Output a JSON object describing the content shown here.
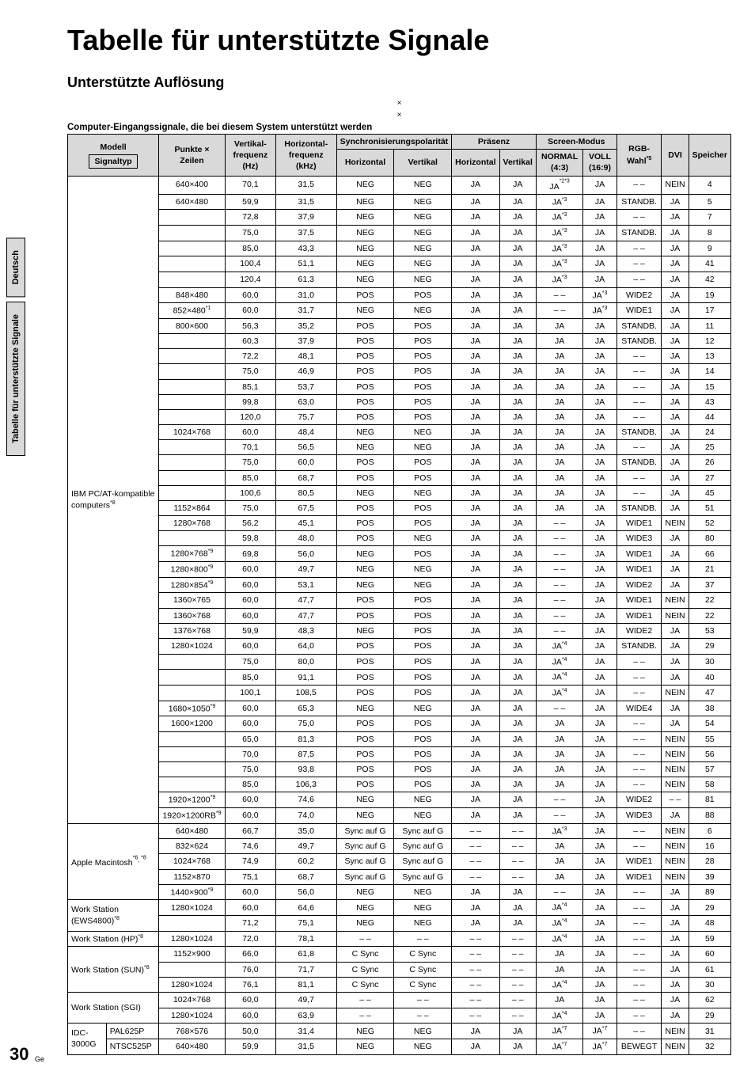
{
  "sideTabs": [
    "Deutsch",
    "Tabelle für unterstützte Signale"
  ],
  "title": "Tabelle für unterstützte Signale",
  "subtitle": "Unterstützte Auflösung",
  "metaLines": [
    "×",
    "×"
  ],
  "caption": "Computer-Eingangssignale, die bei diesem System unterstützt werden",
  "pageNumber": "30",
  "locale": "Ge",
  "headers": {
    "modell": "Modell",
    "signaltyp": "Signaltyp",
    "punkte": "Punkte × Zeilen",
    "vfreq": "Vertikal-frequenz (Hz)",
    "hfreq": "Horizontal-frequenz (kHz)",
    "syncpol": "Synchronisierungspolarität",
    "sync_h": "Horizontal",
    "sync_v": "Vertikal",
    "presenz": "Präsenz",
    "pres_h": "Horizontal",
    "pres_v": "Vertikal",
    "screen": "Screen-Modus",
    "normal": "NORMAL (4:3)",
    "voll": "VOLL (16:9)",
    "rgb": "RGB-Wahl*5",
    "dvi": "DVI",
    "speicher": "Speicher"
  },
  "groups": [
    {
      "model": "IBM PC/AT-kompatible computers*8",
      "rows": [
        {
          "pz": "640×400",
          "v": "70,1",
          "h": "31,5",
          "sh": "NEG",
          "sv": "NEG",
          "ph": "JA",
          "pv": "JA",
          "n": "JA*2*3",
          "f": "JA",
          "r": "– –",
          "d": "NEIN",
          "s": "4"
        },
        {
          "pz": "640×480",
          "v": "59,9",
          "h": "31,5",
          "sh": "NEG",
          "sv": "NEG",
          "ph": "JA",
          "pv": "JA",
          "n": "JA*3",
          "f": "JA",
          "r": "STANDB.",
          "d": "JA",
          "s": "5"
        },
        {
          "v": "72,8",
          "h": "37,9",
          "sh": "NEG",
          "sv": "NEG",
          "ph": "JA",
          "pv": "JA",
          "n": "JA*3",
          "f": "JA",
          "r": "– –",
          "d": "JA",
          "s": "7"
        },
        {
          "v": "75,0",
          "h": "37,5",
          "sh": "NEG",
          "sv": "NEG",
          "ph": "JA",
          "pv": "JA",
          "n": "JA*3",
          "f": "JA",
          "r": "STANDB.",
          "d": "JA",
          "s": "8"
        },
        {
          "v": "85,0",
          "h": "43,3",
          "sh": "NEG",
          "sv": "NEG",
          "ph": "JA",
          "pv": "JA",
          "n": "JA*3",
          "f": "JA",
          "r": "– –",
          "d": "JA",
          "s": "9"
        },
        {
          "v": "100,4",
          "h": "51,1",
          "sh": "NEG",
          "sv": "NEG",
          "ph": "JA",
          "pv": "JA",
          "n": "JA*3",
          "f": "JA",
          "r": "– –",
          "d": "JA",
          "s": "41"
        },
        {
          "v": "120,4",
          "h": "61,3",
          "sh": "NEG",
          "sv": "NEG",
          "ph": "JA",
          "pv": "JA",
          "n": "JA*3",
          "f": "JA",
          "r": "– –",
          "d": "JA",
          "s": "42"
        },
        {
          "pz": "848×480",
          "v": "60,0",
          "h": "31,0",
          "sh": "POS",
          "sv": "POS",
          "ph": "JA",
          "pv": "JA",
          "n": "– –",
          "f": "JA*3",
          "r": "WIDE2",
          "d": "JA",
          "s": "19"
        },
        {
          "pz": "852×480*1",
          "v": "60,0",
          "h": "31,7",
          "sh": "NEG",
          "sv": "NEG",
          "ph": "JA",
          "pv": "JA",
          "n": "– –",
          "f": "JA*3",
          "r": "WIDE1",
          "d": "JA",
          "s": "17"
        },
        {
          "pz": "800×600",
          "v": "56,3",
          "h": "35,2",
          "sh": "POS",
          "sv": "POS",
          "ph": "JA",
          "pv": "JA",
          "n": "JA",
          "f": "JA",
          "r": "STANDB.",
          "d": "JA",
          "s": "11"
        },
        {
          "v": "60,3",
          "h": "37,9",
          "sh": "POS",
          "sv": "POS",
          "ph": "JA",
          "pv": "JA",
          "n": "JA",
          "f": "JA",
          "r": "STANDB.",
          "d": "JA",
          "s": "12"
        },
        {
          "v": "72,2",
          "h": "48,1",
          "sh": "POS",
          "sv": "POS",
          "ph": "JA",
          "pv": "JA",
          "n": "JA",
          "f": "JA",
          "r": "– –",
          "d": "JA",
          "s": "13"
        },
        {
          "v": "75,0",
          "h": "46,9",
          "sh": "POS",
          "sv": "POS",
          "ph": "JA",
          "pv": "JA",
          "n": "JA",
          "f": "JA",
          "r": "– –",
          "d": "JA",
          "s": "14"
        },
        {
          "v": "85,1",
          "h": "53,7",
          "sh": "POS",
          "sv": "POS",
          "ph": "JA",
          "pv": "JA",
          "n": "JA",
          "f": "JA",
          "r": "– –",
          "d": "JA",
          "s": "15"
        },
        {
          "v": "99,8",
          "h": "63,0",
          "sh": "POS",
          "sv": "POS",
          "ph": "JA",
          "pv": "JA",
          "n": "JA",
          "f": "JA",
          "r": "– –",
          "d": "JA",
          "s": "43"
        },
        {
          "v": "120,0",
          "h": "75,7",
          "sh": "POS",
          "sv": "POS",
          "ph": "JA",
          "pv": "JA",
          "n": "JA",
          "f": "JA",
          "r": "– –",
          "d": "JA",
          "s": "44"
        },
        {
          "pz": "1024×768",
          "v": "60,0",
          "h": "48,4",
          "sh": "NEG",
          "sv": "NEG",
          "ph": "JA",
          "pv": "JA",
          "n": "JA",
          "f": "JA",
          "r": "STANDB.",
          "d": "JA",
          "s": "24"
        },
        {
          "v": "70,1",
          "h": "56,5",
          "sh": "NEG",
          "sv": "NEG",
          "ph": "JA",
          "pv": "JA",
          "n": "JA",
          "f": "JA",
          "r": "– –",
          "d": "JA",
          "s": "25"
        },
        {
          "v": "75,0",
          "h": "60,0",
          "sh": "POS",
          "sv": "POS",
          "ph": "JA",
          "pv": "JA",
          "n": "JA",
          "f": "JA",
          "r": "STANDB.",
          "d": "JA",
          "s": "26"
        },
        {
          "v": "85,0",
          "h": "68,7",
          "sh": "POS",
          "sv": "POS",
          "ph": "JA",
          "pv": "JA",
          "n": "JA",
          "f": "JA",
          "r": "– –",
          "d": "JA",
          "s": "27"
        },
        {
          "v": "100,6",
          "h": "80,5",
          "sh": "NEG",
          "sv": "NEG",
          "ph": "JA",
          "pv": "JA",
          "n": "JA",
          "f": "JA",
          "r": "– –",
          "d": "JA",
          "s": "45"
        },
        {
          "pz": "1152×864",
          "v": "75,0",
          "h": "67,5",
          "sh": "POS",
          "sv": "POS",
          "ph": "JA",
          "pv": "JA",
          "n": "JA",
          "f": "JA",
          "r": "STANDB.",
          "d": "JA",
          "s": "51"
        },
        {
          "pz": "1280×768",
          "v": "56,2",
          "h": "45,1",
          "sh": "POS",
          "sv": "POS",
          "ph": "JA",
          "pv": "JA",
          "n": "– –",
          "f": "JA",
          "r": "WIDE1",
          "d": "NEIN",
          "s": "52"
        },
        {
          "v": "59,8",
          "h": "48,0",
          "sh": "POS",
          "sv": "NEG",
          "ph": "JA",
          "pv": "JA",
          "n": "– –",
          "f": "JA",
          "r": "WIDE3",
          "d": "JA",
          "s": "80"
        },
        {
          "pz": "1280×768*9",
          "v": "69,8",
          "h": "56,0",
          "sh": "NEG",
          "sv": "POS",
          "ph": "JA",
          "pv": "JA",
          "n": "– –",
          "f": "JA",
          "r": "WIDE1",
          "d": "JA",
          "s": "66"
        },
        {
          "pz": "1280×800*9",
          "v": "60,0",
          "h": "49,7",
          "sh": "NEG",
          "sv": "NEG",
          "ph": "JA",
          "pv": "JA",
          "n": "– –",
          "f": "JA",
          "r": "WIDE1",
          "d": "JA",
          "s": "21"
        },
        {
          "pz": "1280×854*9",
          "v": "60,0",
          "h": "53,1",
          "sh": "NEG",
          "sv": "NEG",
          "ph": "JA",
          "pv": "JA",
          "n": "– –",
          "f": "JA",
          "r": "WIDE2",
          "d": "JA",
          "s": "37"
        },
        {
          "pz": "1360×765",
          "v": "60,0",
          "h": "47,7",
          "sh": "POS",
          "sv": "POS",
          "ph": "JA",
          "pv": "JA",
          "n": "– –",
          "f": "JA",
          "r": "WIDE1",
          "d": "NEIN",
          "s": "22"
        },
        {
          "pz": "1360×768",
          "v": "60,0",
          "h": "47,7",
          "sh": "POS",
          "sv": "POS",
          "ph": "JA",
          "pv": "JA",
          "n": "– –",
          "f": "JA",
          "r": "WIDE1",
          "d": "NEIN",
          "s": "22"
        },
        {
          "pz": "1376×768",
          "v": "59,9",
          "h": "48,3",
          "sh": "NEG",
          "sv": "POS",
          "ph": "JA",
          "pv": "JA",
          "n": "– –",
          "f": "JA",
          "r": "WIDE2",
          "d": "JA",
          "s": "53"
        },
        {
          "pz": "1280×1024",
          "v": "60,0",
          "h": "64,0",
          "sh": "POS",
          "sv": "POS",
          "ph": "JA",
          "pv": "JA",
          "n": "JA*4",
          "f": "JA",
          "r": "STANDB.",
          "d": "JA",
          "s": "29"
        },
        {
          "v": "75,0",
          "h": "80,0",
          "sh": "POS",
          "sv": "POS",
          "ph": "JA",
          "pv": "JA",
          "n": "JA*4",
          "f": "JA",
          "r": "– –",
          "d": "JA",
          "s": "30"
        },
        {
          "v": "85,0",
          "h": "91,1",
          "sh": "POS",
          "sv": "POS",
          "ph": "JA",
          "pv": "JA",
          "n": "JA*4",
          "f": "JA",
          "r": "– –",
          "d": "JA",
          "s": "40"
        },
        {
          "v": "100,1",
          "h": "108,5",
          "sh": "POS",
          "sv": "POS",
          "ph": "JA",
          "pv": "JA",
          "n": "JA*4",
          "f": "JA",
          "r": "– –",
          "d": "NEIN",
          "s": "47"
        },
        {
          "pz": "1680×1050*9",
          "v": "60,0",
          "h": "65,3",
          "sh": "NEG",
          "sv": "NEG",
          "ph": "JA",
          "pv": "JA",
          "n": "– –",
          "f": "JA",
          "r": "WIDE4",
          "d": "JA",
          "s": "38"
        },
        {
          "pz": "1600×1200",
          "v": "60,0",
          "h": "75,0",
          "sh": "POS",
          "sv": "POS",
          "ph": "JA",
          "pv": "JA",
          "n": "JA",
          "f": "JA",
          "r": "– –",
          "d": "JA",
          "s": "54"
        },
        {
          "v": "65,0",
          "h": "81,3",
          "sh": "POS",
          "sv": "POS",
          "ph": "JA",
          "pv": "JA",
          "n": "JA",
          "f": "JA",
          "r": "– –",
          "d": "NEIN",
          "s": "55"
        },
        {
          "v": "70,0",
          "h": "87,5",
          "sh": "POS",
          "sv": "POS",
          "ph": "JA",
          "pv": "JA",
          "n": "JA",
          "f": "JA",
          "r": "– –",
          "d": "NEIN",
          "s": "56"
        },
        {
          "v": "75,0",
          "h": "93,8",
          "sh": "POS",
          "sv": "POS",
          "ph": "JA",
          "pv": "JA",
          "n": "JA",
          "f": "JA",
          "r": "– –",
          "d": "NEIN",
          "s": "57"
        },
        {
          "v": "85,0",
          "h": "106,3",
          "sh": "POS",
          "sv": "POS",
          "ph": "JA",
          "pv": "JA",
          "n": "JA",
          "f": "JA",
          "r": "– –",
          "d": "NEIN",
          "s": "58"
        },
        {
          "pz": "1920×1200*9",
          "v": "60,0",
          "h": "74,6",
          "sh": "NEG",
          "sv": "NEG",
          "ph": "JA",
          "pv": "JA",
          "n": "– –",
          "f": "JA",
          "r": "WIDE2",
          "d": "– –",
          "s": "81"
        },
        {
          "pz": "1920×1200RB*9",
          "v": "60,0",
          "h": "74,0",
          "sh": "NEG",
          "sv": "NEG",
          "ph": "JA",
          "pv": "JA",
          "n": "– –",
          "f": "JA",
          "r": "WIDE3",
          "d": "JA",
          "s": "88"
        }
      ]
    },
    {
      "model": "Apple Macintosh*6, *8",
      "rows": [
        {
          "pz": "640×480",
          "v": "66,7",
          "h": "35,0",
          "sh": "Sync auf G",
          "sv": "Sync auf G",
          "ph": "– –",
          "pv": "– –",
          "n": "JA*3",
          "f": "JA",
          "r": "– –",
          "d": "NEIN",
          "s": "6"
        },
        {
          "pz": "832×624",
          "v": "74,6",
          "h": "49,7",
          "sh": "Sync auf G",
          "sv": "Sync auf G",
          "ph": "– –",
          "pv": "– –",
          "n": "JA",
          "f": "JA",
          "r": "– –",
          "d": "NEIN",
          "s": "16"
        },
        {
          "pz": "1024×768",
          "v": "74,9",
          "h": "60,2",
          "sh": "Sync auf G",
          "sv": "Sync auf G",
          "ph": "– –",
          "pv": "– –",
          "n": "JA",
          "f": "JA",
          "r": "WIDE1",
          "d": "NEIN",
          "s": "28"
        },
        {
          "pz": "1152×870",
          "v": "75,1",
          "h": "68,7",
          "sh": "Sync auf G",
          "sv": "Sync auf G",
          "ph": "– –",
          "pv": "– –",
          "n": "JA",
          "f": "JA",
          "r": "WIDE1",
          "d": "NEIN",
          "s": "39"
        },
        {
          "pz": "1440×900*9",
          "v": "60,0",
          "h": "56,0",
          "sh": "NEG",
          "sv": "NEG",
          "ph": "JA",
          "pv": "JA",
          "n": "– –",
          "f": "JA",
          "r": "– –",
          "d": "JA",
          "s": "89"
        }
      ]
    },
    {
      "model": "Work Station (EWS4800)*8",
      "rows": [
        {
          "pz": "1280×1024",
          "v": "60,0",
          "h": "64,6",
          "sh": "NEG",
          "sv": "NEG",
          "ph": "JA",
          "pv": "JA",
          "n": "JA*4",
          "f": "JA",
          "r": "– –",
          "d": "JA",
          "s": "29"
        },
        {
          "v": "71,2",
          "h": "75,1",
          "sh": "NEG",
          "sv": "NEG",
          "ph": "JA",
          "pv": "JA",
          "n": "JA*4",
          "f": "JA",
          "r": "– –",
          "d": "JA",
          "s": "48"
        }
      ]
    },
    {
      "model": "Work Station (HP)*8",
      "rows": [
        {
          "pz": "1280×1024",
          "v": "72,0",
          "h": "78,1",
          "sh": "– –",
          "sv": "– –",
          "ph": "– –",
          "pv": "– –",
          "n": "JA*4",
          "f": "JA",
          "r": "– –",
          "d": "JA",
          "s": "59"
        }
      ]
    },
    {
      "model": "Work Station (SUN)*8",
      "rows": [
        {
          "pz": "1152×900",
          "v": "66,0",
          "h": "61,8",
          "sh": "C Sync",
          "sv": "C Sync",
          "ph": "– –",
          "pv": "– –",
          "n": "JA",
          "f": "JA",
          "r": "– –",
          "d": "JA",
          "s": "60"
        },
        {
          "v": "76,0",
          "h": "71,7",
          "sh": "C Sync",
          "sv": "C Sync",
          "ph": "– –",
          "pv": "– –",
          "n": "JA",
          "f": "JA",
          "r": "– –",
          "d": "JA",
          "s": "61"
        },
        {
          "pz": "1280×1024",
          "v": "76,1",
          "h": "81,1",
          "sh": "C Sync",
          "sv": "C Sync",
          "ph": "– –",
          "pv": "– –",
          "n": "JA*4",
          "f": "JA",
          "r": "– –",
          "d": "JA",
          "s": "30"
        }
      ]
    },
    {
      "model": "Work Station (SGI)",
      "rows": [
        {
          "pz": "1024×768",
          "v": "60,0",
          "h": "49,7",
          "sh": "– –",
          "sv": "– –",
          "ph": "– –",
          "pv": "– –",
          "n": "JA",
          "f": "JA",
          "r": "– –",
          "d": "JA",
          "s": "62"
        },
        {
          "pz": "1280×1024",
          "v": "60,0",
          "h": "63,9",
          "sh": "– –",
          "sv": "– –",
          "ph": "– –",
          "pv": "– –",
          "n": "JA*4",
          "f": "JA",
          "r": "– –",
          "d": "JA",
          "s": "29"
        }
      ]
    },
    {
      "model": "IDC-3000G",
      "subrows": [
        {
          "sig": "PAL625P",
          "pz": "768×576",
          "v": "50,0",
          "h": "31,4",
          "sh": "NEG",
          "sv": "NEG",
          "ph": "JA",
          "pv": "JA",
          "n": "JA*7",
          "f": "JA*7",
          "r": "– –",
          "d": "NEIN",
          "s": "31"
        },
        {
          "sig": "NTSC525P",
          "pz": "640×480",
          "v": "59,9",
          "h": "31,5",
          "sh": "NEG",
          "sv": "NEG",
          "ph": "JA",
          "pv": "JA",
          "n": "JA*7",
          "f": "JA*7",
          "r": "BEWEGT",
          "d": "NEIN",
          "s": "32"
        }
      ]
    }
  ]
}
